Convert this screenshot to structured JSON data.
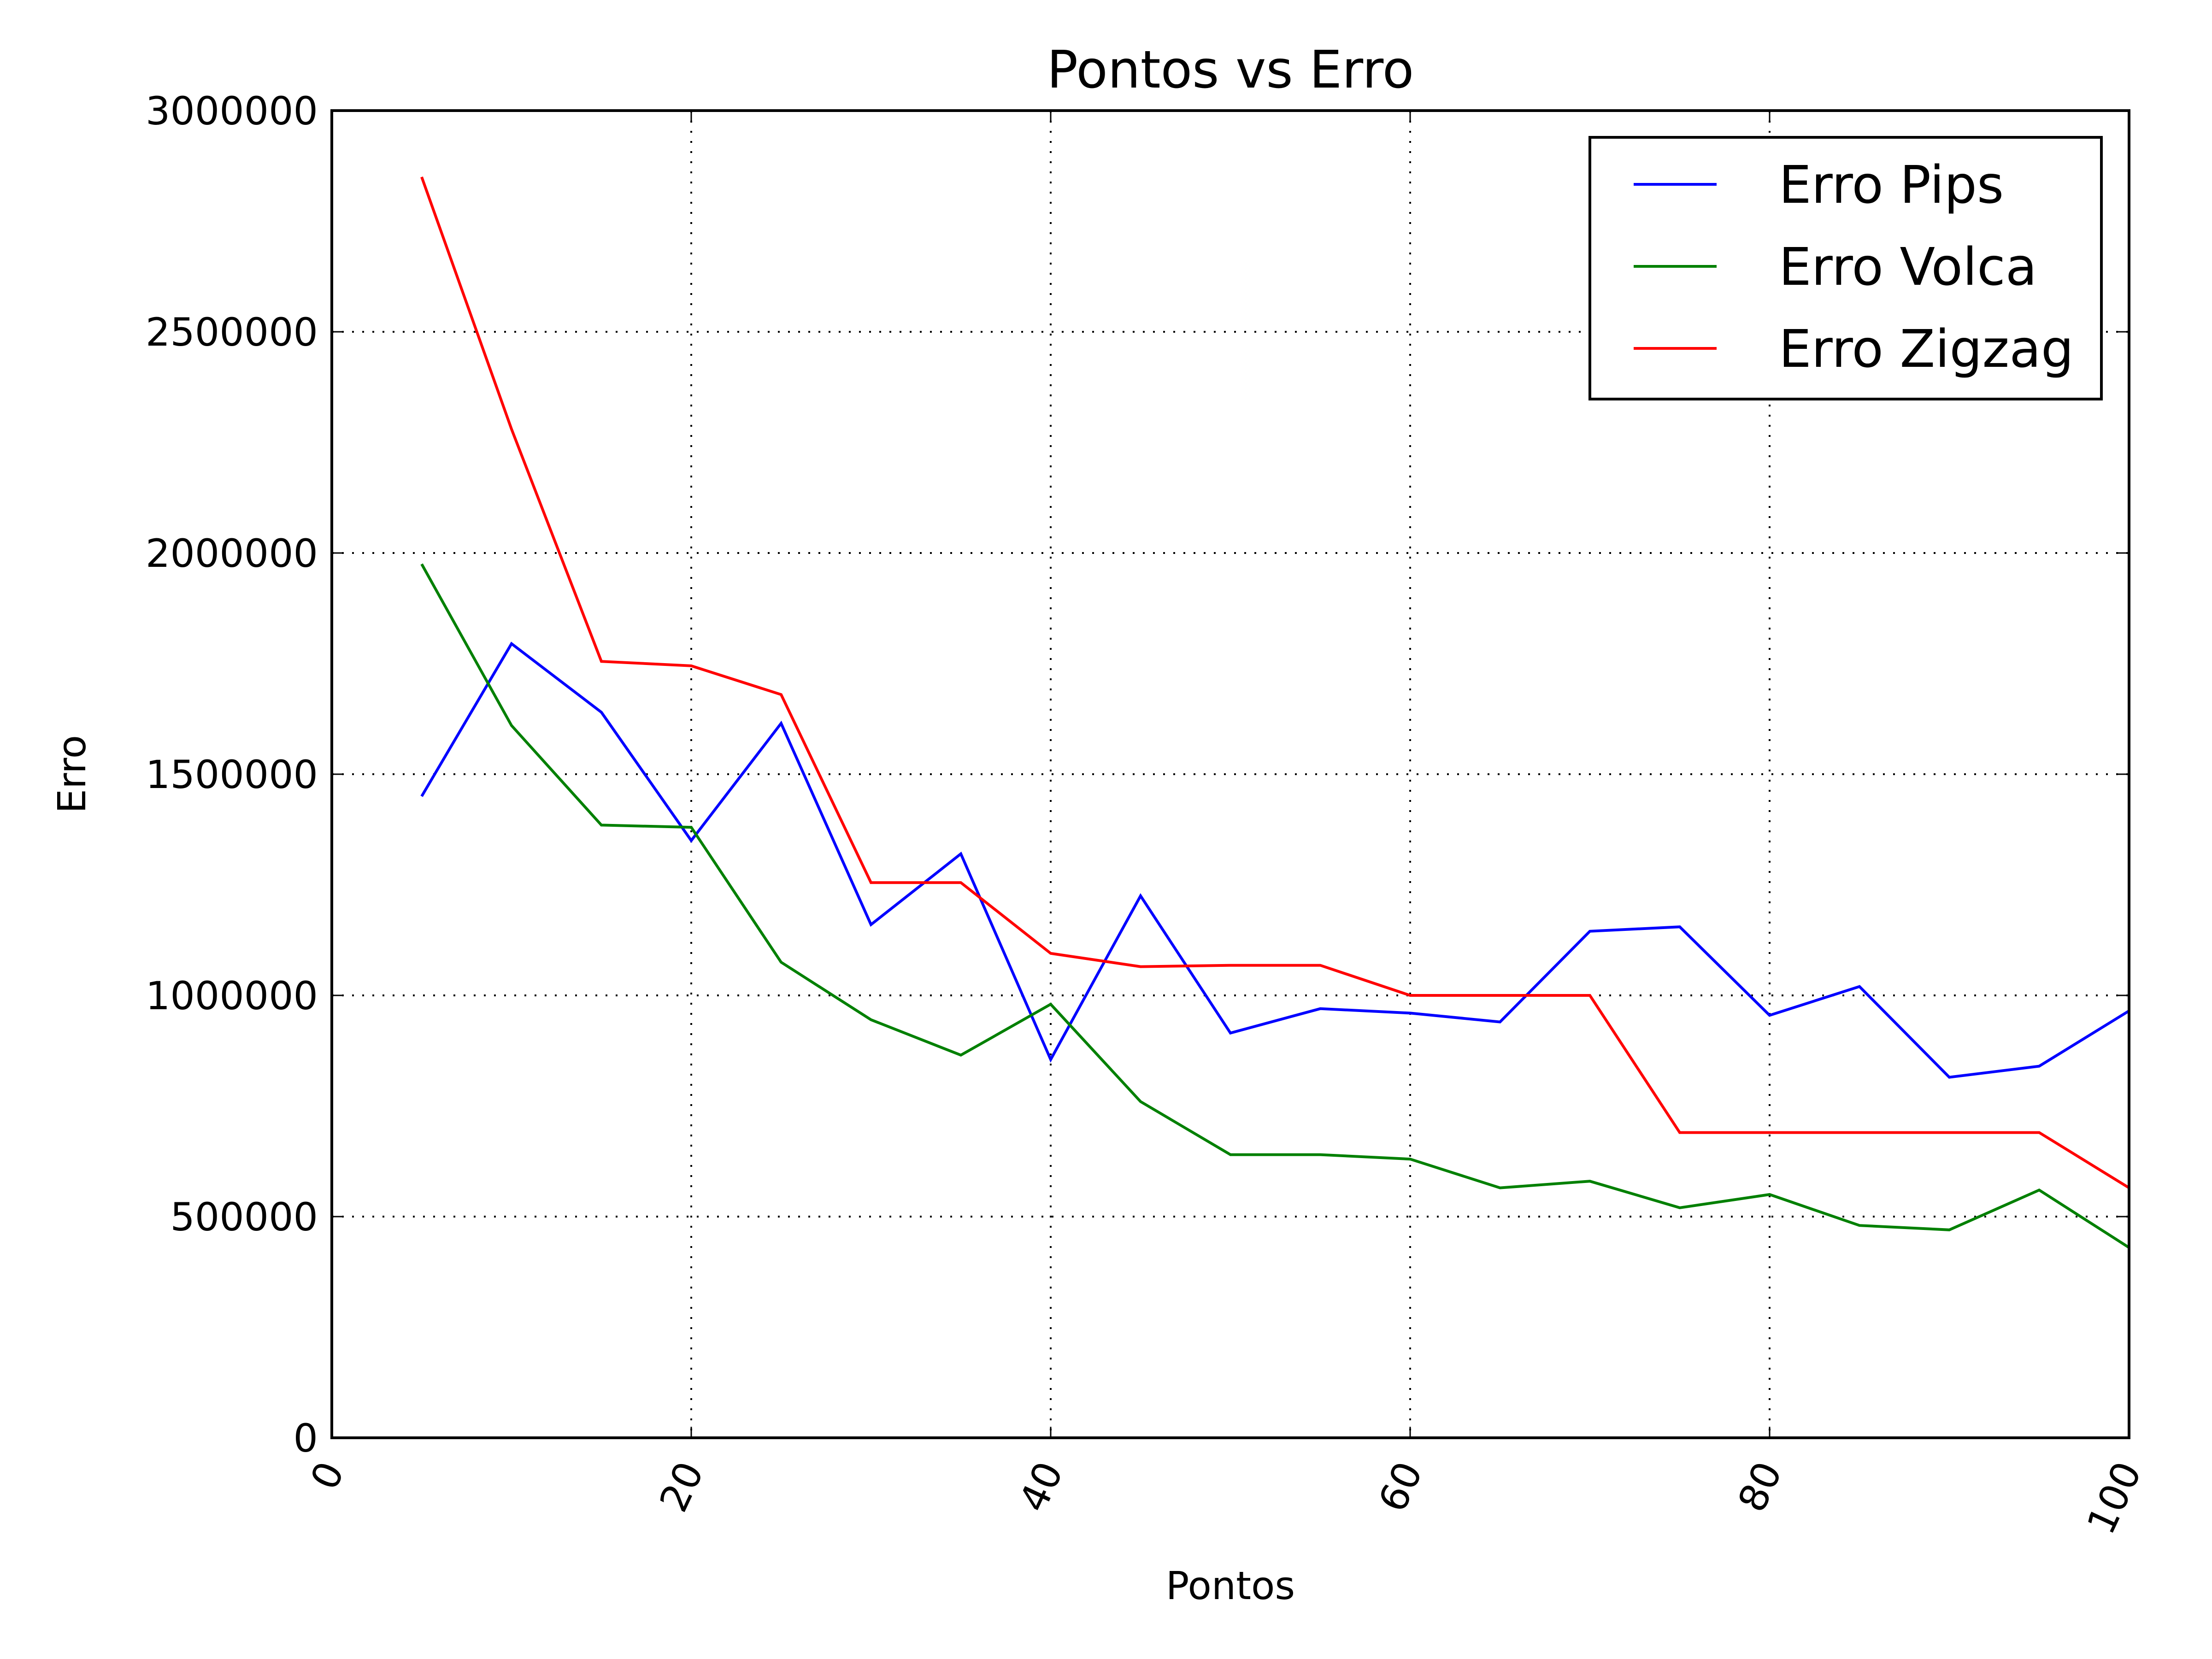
{
  "chart_data": {
    "type": "line",
    "title": "Pontos vs Erro",
    "xlabel": "Pontos",
    "ylabel": "Erro",
    "xlim": [
      0,
      100
    ],
    "ylim": [
      0,
      3000000
    ],
    "xticks": [
      0,
      20,
      40,
      60,
      80,
      100
    ],
    "yticks": [
      0,
      500000,
      1000000,
      1500000,
      2000000,
      2500000,
      3000000
    ],
    "xtick_labels": [
      "0",
      "20",
      "40",
      "60",
      "80",
      "100"
    ],
    "ytick_labels": [
      "0",
      "500000",
      "1000000",
      "1500000",
      "2000000",
      "2500000",
      "3000000"
    ],
    "grid": true,
    "legend_position": "top-right",
    "x": [
      5,
      10,
      15,
      20,
      25,
      30,
      35,
      40,
      45,
      50,
      55,
      60,
      65,
      70,
      75,
      80,
      85,
      90,
      95,
      100
    ],
    "series": [
      {
        "name": "Erro Pips",
        "color": "#0000ff",
        "values": [
          1450000,
          1795000,
          1640000,
          1350000,
          1615000,
          1160000,
          1320000,
          855000,
          1225000,
          915000,
          970000,
          960000,
          940000,
          1145000,
          1155000,
          955000,
          1020000,
          815000,
          840000,
          965000
        ]
      },
      {
        "name": "Erro Volca",
        "color": "#008000",
        "values": [
          1975000,
          1610000,
          1385000,
          1380000,
          1075000,
          945000,
          865000,
          980000,
          760000,
          640000,
          640000,
          630000,
          565000,
          580000,
          520000,
          550000,
          480000,
          470000,
          560000,
          430000
        ]
      },
      {
        "name": "Erro Zigzag",
        "color": "#ff0000",
        "values": [
          2850000,
          2280000,
          1755000,
          1745000,
          1680000,
          1255000,
          1255000,
          1095000,
          1065000,
          1068000,
          1068000,
          1000000,
          1000000,
          1000000,
          690000,
          690000,
          690000,
          690000,
          690000,
          565000
        ]
      }
    ]
  }
}
